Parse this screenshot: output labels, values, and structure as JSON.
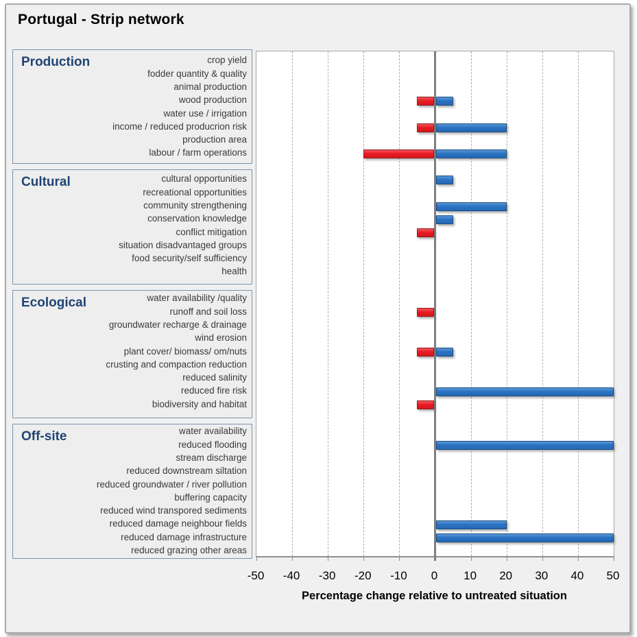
{
  "title": "Portugal - Strip network",
  "colors": {
    "positive_bar": "#2b73c2",
    "negative_bar": "#e81c24",
    "section_heading": "#1f4473",
    "frame_background": "#f0f0f0",
    "plot_background": "#ffffff",
    "zero_axis": "#7f7f7f",
    "gridline": "#adadad",
    "box_border": "#7c92aa"
  },
  "chart_data": {
    "type": "bar",
    "orientation": "horizontal",
    "title": "Portugal - Strip network",
    "xlabel": "Percentage change relative to untreated situation",
    "xlim": [
      -50,
      50
    ],
    "x_ticks": [
      -50,
      -40,
      -30,
      -20,
      -10,
      0,
      10,
      20,
      30,
      40,
      50
    ],
    "grid": "vertical-dashed",
    "legend": "none",
    "sections": [
      {
        "name": "Production",
        "rows": [
          {
            "label": "crop yield",
            "negative": null,
            "positive": null
          },
          {
            "label": "fodder quantity & quality",
            "negative": null,
            "positive": null
          },
          {
            "label": "animal production",
            "negative": null,
            "positive": null
          },
          {
            "label": "wood production",
            "negative": -5,
            "positive": 5
          },
          {
            "label": "water use / irrigation",
            "negative": null,
            "positive": null
          },
          {
            "label": "income / reduced producrion risk",
            "negative": -5,
            "positive": 20
          },
          {
            "label": "production area",
            "negative": null,
            "positive": null
          },
          {
            "label": "labour / farm operations",
            "negative": -20,
            "positive": 20
          }
        ]
      },
      {
        "name": "Cultural",
        "rows": [
          {
            "label": "cultural opportunities",
            "negative": null,
            "positive": 5
          },
          {
            "label": "recreational opportunities",
            "negative": null,
            "positive": null
          },
          {
            "label": "community strengthening",
            "negative": null,
            "positive": 20
          },
          {
            "label": "conservation knowledge",
            "negative": null,
            "positive": 5
          },
          {
            "label": "conflict mitigation",
            "negative": -5,
            "positive": null
          },
          {
            "label": "situation disadvantaged groups",
            "negative": null,
            "positive": null
          },
          {
            "label": "food security/self sufficiency",
            "negative": null,
            "positive": null
          },
          {
            "label": "health",
            "negative": null,
            "positive": null
          }
        ]
      },
      {
        "name": "Ecological",
        "rows": [
          {
            "label": "water availability /quality",
            "negative": null,
            "positive": null
          },
          {
            "label": "runoff and soil loss",
            "negative": -5,
            "positive": null
          },
          {
            "label": "groundwater recharge & drainage",
            "negative": null,
            "positive": null
          },
          {
            "label": "wind erosion",
            "negative": null,
            "positive": null
          },
          {
            "label": "plant cover/ biomass/ om/nuts",
            "negative": -5,
            "positive": 5
          },
          {
            "label": "crusting and compaction reduction",
            "negative": null,
            "positive": null
          },
          {
            "label": "reduced salinity",
            "negative": null,
            "positive": null
          },
          {
            "label": "reduced fire risk",
            "negative": null,
            "positive": 50
          },
          {
            "label": "biodiversity and habitat",
            "negative": -5,
            "positive": null
          }
        ]
      },
      {
        "name": "Off-site",
        "rows": [
          {
            "label": "water availability",
            "negative": null,
            "positive": null
          },
          {
            "label": "reduced flooding",
            "negative": null,
            "positive": 50
          },
          {
            "label": "stream discharge",
            "negative": null,
            "positive": null
          },
          {
            "label": "reduced downstream siltation",
            "negative": null,
            "positive": null
          },
          {
            "label": "reduced groundwater / river pollution",
            "negative": null,
            "positive": null
          },
          {
            "label": "buffering capacity",
            "negative": null,
            "positive": null
          },
          {
            "label": "reduced wind transpored sediments",
            "negative": null,
            "positive": null
          },
          {
            "label": "reduced damage neighbour fields",
            "negative": null,
            "positive": 20
          },
          {
            "label": "reduced damage infrastructure",
            "negative": null,
            "positive": 50
          },
          {
            "label": "reduced grazing other areas",
            "negative": null,
            "positive": null
          }
        ]
      }
    ]
  }
}
